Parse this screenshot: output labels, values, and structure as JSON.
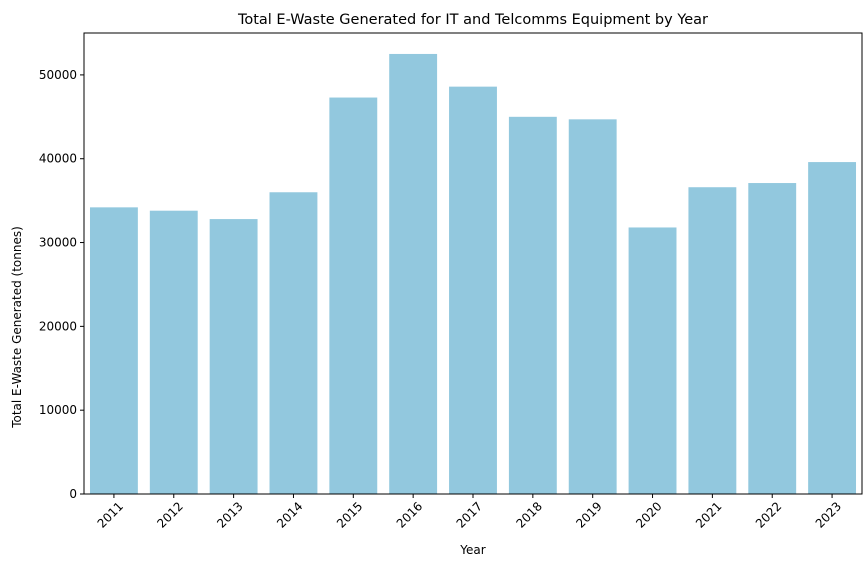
{
  "chart_data": {
    "type": "bar",
    "title": "Total E-Waste Generated for IT and Telcomms Equipment by Year",
    "xlabel": "Year",
    "ylabel": "Total E-Waste Generated (tonnes)",
    "categories": [
      "2011",
      "2012",
      "2013",
      "2014",
      "2015",
      "2016",
      "2017",
      "2018",
      "2019",
      "2020",
      "2021",
      "2022",
      "2023"
    ],
    "values": [
      34200,
      33800,
      32800,
      36000,
      47300,
      52500,
      48600,
      45000,
      44700,
      31800,
      36600,
      37100,
      39600
    ],
    "ylim": [
      0,
      55000
    ],
    "yticks": [
      0,
      10000,
      20000,
      30000,
      40000,
      50000
    ],
    "bar_color": "#92c8de",
    "grid": false,
    "legend": "none"
  }
}
